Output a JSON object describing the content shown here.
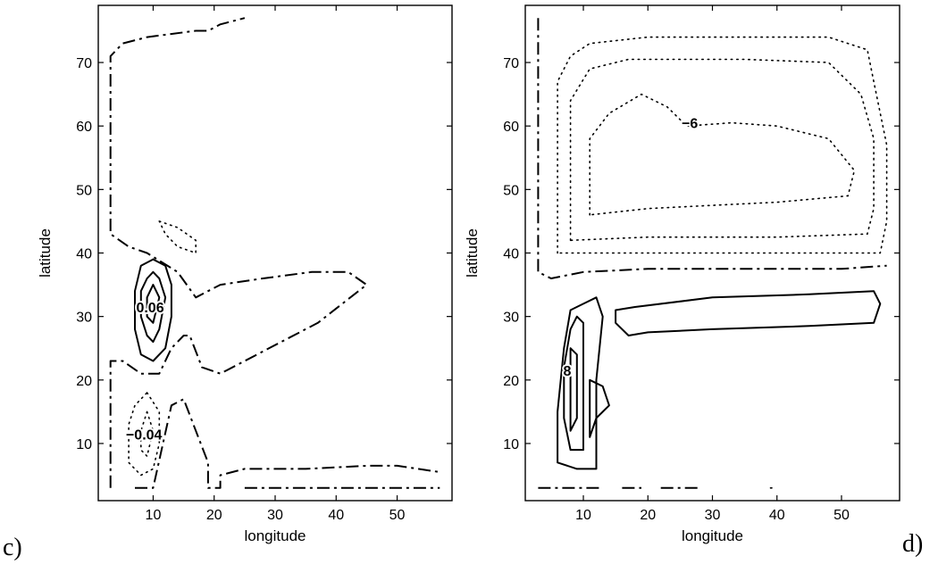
{
  "chart_data": [
    {
      "type": "contour",
      "panel_label": "c)",
      "xlabel": "longitude",
      "ylabel": "latitude",
      "xlim": [
        1,
        59
      ],
      "ylim": [
        1,
        79
      ],
      "xticks": [
        10,
        20,
        30,
        40,
        50
      ],
      "yticks": [
        10,
        20,
        30,
        40,
        50,
        60,
        70
      ],
      "contour_labels": [
        {
          "text": "0.06",
          "x": 9.5,
          "y": 31.5
        },
        {
          "text": "−0.04",
          "x": 8.5,
          "y": 11.5
        }
      ],
      "contours": [
        {
          "style": "dashed",
          "points": [
            [
              3,
              3
            ],
            [
              3,
              23
            ],
            [
              5,
              23
            ],
            [
              8,
              21
            ],
            [
              11,
              21
            ],
            [
              13,
              25
            ],
            [
              15,
              27
            ],
            [
              16,
              27
            ],
            [
              18,
              22
            ],
            [
              21,
              21
            ],
            [
              25,
              23
            ],
            [
              31,
              26
            ],
            [
              37,
              29
            ],
            [
              41,
              32
            ],
            [
              45,
              35
            ],
            [
              42,
              37
            ],
            [
              36,
              37
            ],
            [
              28,
              36
            ],
            [
              21,
              35
            ],
            [
              17,
              33
            ],
            [
              14,
              37
            ],
            [
              9,
              40
            ],
            [
              6,
              41
            ],
            [
              3,
              43
            ],
            [
              3,
              71
            ],
            [
              5,
              73
            ],
            [
              9,
              74
            ],
            [
              17,
              75
            ],
            [
              19,
              75
            ],
            [
              21,
              76
            ],
            [
              25,
              77
            ]
          ]
        },
        {
          "style": "dashed",
          "points": [
            [
              7,
              3
            ],
            [
              10,
              3
            ],
            [
              13,
              16
            ],
            [
              15,
              17
            ],
            [
              17,
              12
            ],
            [
              19,
              7
            ],
            [
              19,
              3
            ],
            [
              21,
              3
            ],
            [
              21,
              5
            ],
            [
              25,
              6
            ],
            [
              35,
              6
            ],
            [
              45,
              6.5
            ],
            [
              50,
              6.5
            ],
            [
              57,
              5.5
            ]
          ]
        },
        {
          "style": "dashed",
          "points": [
            [
              21,
              3
            ],
            [
              21,
              3
            ]
          ]
        },
        {
          "style": "dashed",
          "points": [
            [
              25,
              3
            ],
            [
              57,
              3
            ]
          ]
        },
        {
          "style": "solid",
          "points": [
            [
              10,
              39
            ],
            [
              12,
              38
            ],
            [
              13,
              35
            ],
            [
              13,
              30
            ],
            [
              12,
              25
            ],
            [
              10,
              23
            ],
            [
              8,
              24
            ],
            [
              7,
              28
            ],
            [
              7,
              34
            ],
            [
              8,
              38
            ],
            [
              10,
              39
            ]
          ]
        },
        {
          "style": "solid",
          "points": [
            [
              10,
              37
            ],
            [
              11,
              36
            ],
            [
              12,
              33
            ],
            [
              11,
              28
            ],
            [
              10,
              26
            ],
            [
              9,
              27
            ],
            [
              8,
              30
            ],
            [
              8,
              34
            ],
            [
              9,
              36
            ],
            [
              10,
              37
            ]
          ]
        },
        {
          "style": "solid",
          "points": [
            [
              10,
              35
            ],
            [
              11,
              33
            ],
            [
              10,
              29
            ],
            [
              9,
              30
            ],
            [
              9,
              33
            ],
            [
              10,
              35
            ]
          ]
        },
        {
          "style": "dotted",
          "points": [
            [
              11,
              45
            ],
            [
              14,
              44
            ],
            [
              17,
              42
            ],
            [
              17,
              40
            ],
            [
              14,
              41
            ],
            [
              12,
              43
            ],
            [
              11,
              45
            ]
          ]
        },
        {
          "style": "dotted",
          "points": [
            [
              9,
              18
            ],
            [
              11,
              15
            ],
            [
              11,
              10
            ],
            [
              10,
              6
            ],
            [
              8,
              5
            ],
            [
              6,
              7
            ],
            [
              6,
              13
            ],
            [
              7,
              16
            ],
            [
              9,
              18
            ]
          ]
        },
        {
          "style": "dotted",
          "points": [
            [
              9,
              15
            ],
            [
              10,
              12
            ],
            [
              9,
              8
            ],
            [
              8,
              9
            ],
            [
              8,
              12
            ],
            [
              9,
              15
            ]
          ]
        }
      ]
    },
    {
      "type": "contour",
      "panel_label": "d)",
      "xlabel": "longitude",
      "ylabel": "latitude",
      "xlim": [
        1,
        59
      ],
      "ylim": [
        1,
        79
      ],
      "xticks": [
        10,
        20,
        30,
        40,
        50
      ],
      "yticks": [
        10,
        20,
        30,
        40,
        50,
        60,
        70
      ],
      "contour_labels": [
        {
          "text": "−6",
          "x": 26.5,
          "y": 60.5
        },
        {
          "text": "8",
          "x": 7.5,
          "y": 21.5
        }
      ],
      "contours": [
        {
          "style": "dashed",
          "points": [
            [
              3,
              77
            ],
            [
              3,
              37
            ],
            [
              5,
              36
            ],
            [
              10,
              37
            ],
            [
              20,
              37.5
            ],
            [
              30,
              37.5
            ],
            [
              40,
              37.5
            ],
            [
              50,
              37.5
            ],
            [
              57,
              38
            ]
          ]
        },
        {
          "style": "dashed",
          "points": [
            [
              3,
              3
            ],
            [
              13,
              3
            ]
          ]
        },
        {
          "style": "dashed",
          "points": [
            [
              16,
              3
            ],
            [
              19,
              3
            ]
          ]
        },
        {
          "style": "dashed",
          "points": [
            [
              22,
              3
            ],
            [
              28,
              3
            ]
          ]
        },
        {
          "style": "dotted",
          "points": [
            [
              39,
              3
            ],
            [
              39.3,
              3
            ]
          ]
        },
        {
          "style": "dotted",
          "points": [
            [
              6,
              40
            ],
            [
              6,
              67
            ],
            [
              8,
              71
            ],
            [
              11,
              73
            ],
            [
              20,
              74
            ],
            [
              35,
              74
            ],
            [
              48,
              74
            ],
            [
              54,
              72
            ],
            [
              55,
              67
            ],
            [
              57,
              57
            ],
            [
              57,
              45
            ],
            [
              56,
              40
            ],
            [
              40,
              40
            ],
            [
              20,
              40
            ],
            [
              6,
              40
            ]
          ]
        },
        {
          "style": "dotted",
          "points": [
            [
              8,
              42
            ],
            [
              8,
              64
            ],
            [
              11,
              69
            ],
            [
              17,
              70.5
            ],
            [
              35,
              70.5
            ],
            [
              48,
              70
            ],
            [
              53,
              65
            ],
            [
              55,
              58
            ],
            [
              55,
              47
            ],
            [
              54,
              43
            ],
            [
              40,
              42.5
            ],
            [
              20,
              42.5
            ],
            [
              8,
              42
            ]
          ]
        },
        {
          "style": "dotted",
          "points": [
            [
              11,
              46
            ],
            [
              11,
              58
            ],
            [
              14,
              62
            ],
            [
              19,
              65
            ],
            [
              23,
              63
            ],
            [
              26,
              60
            ],
            [
              33,
              60.5
            ],
            [
              40,
              60
            ],
            [
              48,
              58
            ],
            [
              52,
              53
            ],
            [
              51,
              49
            ],
            [
              40,
              48
            ],
            [
              30,
              47.5
            ],
            [
              20,
              47
            ],
            [
              11,
              46
            ]
          ]
        },
        {
          "style": "solid",
          "points": [
            [
              15,
              29
            ],
            [
              15,
              31
            ],
            [
              18,
              31.5
            ],
            [
              30,
              33
            ],
            [
              45,
              33.5
            ],
            [
              55,
              34
            ],
            [
              56,
              32
            ],
            [
              55,
              29
            ],
            [
              45,
              28.5
            ],
            [
              30,
              28
            ],
            [
              20,
              27.5
            ],
            [
              17,
              27
            ],
            [
              15,
              29
            ]
          ]
        },
        {
          "style": "solid",
          "points": [
            [
              9,
              6
            ],
            [
              12,
              6
            ],
            [
              12,
              8
            ],
            [
              12,
              20
            ],
            [
              13,
              30
            ],
            [
              12,
              33
            ],
            [
              10,
              32
            ],
            [
              8,
              31
            ],
            [
              7,
              25
            ],
            [
              6,
              15
            ],
            [
              6,
              7
            ],
            [
              9,
              6
            ]
          ]
        },
        {
          "style": "solid",
          "points": [
            [
              8,
              9
            ],
            [
              10,
              9
            ],
            [
              10,
              22
            ],
            [
              10,
              29
            ],
            [
              9,
              30
            ],
            [
              8,
              28
            ],
            [
              7,
              22
            ],
            [
              7,
              14
            ],
            [
              8,
              9
            ]
          ]
        },
        {
          "style": "solid",
          "points": [
            [
              8,
              12
            ],
            [
              9,
              14
            ],
            [
              9,
              24
            ],
            [
              8,
              25
            ],
            [
              8,
              20
            ],
            [
              8,
              12
            ]
          ]
        },
        {
          "style": "solid",
          "points": [
            [
              11,
              11
            ],
            [
              11,
              20
            ],
            [
              13,
              19
            ],
            [
              14,
              16
            ],
            [
              12,
              14
            ],
            [
              11,
              11
            ]
          ]
        }
      ]
    }
  ]
}
